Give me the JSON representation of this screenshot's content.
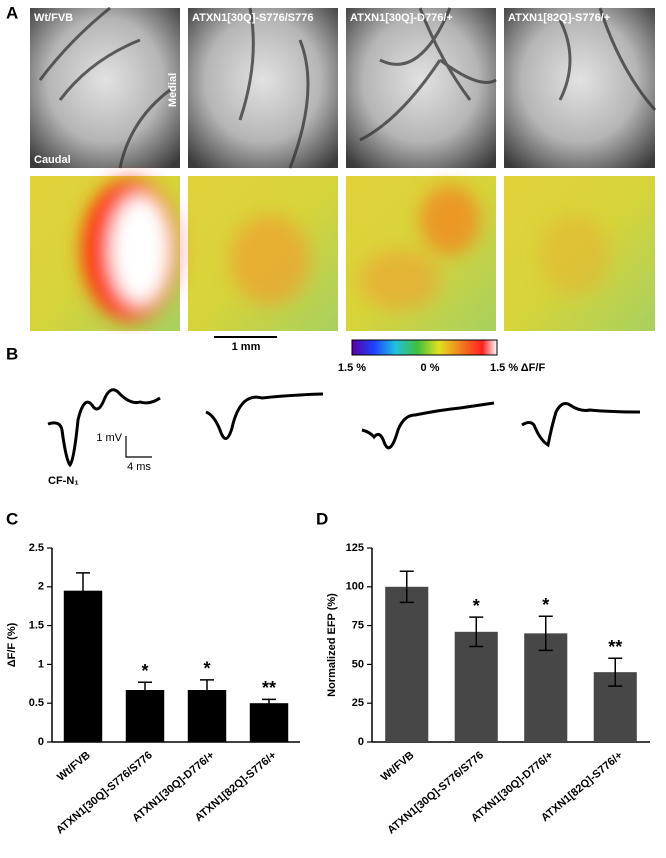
{
  "panel_labels": [
    "A",
    "B",
    "C",
    "D"
  ],
  "images": {
    "labels": [
      "Wt/FVB",
      "ATXN1[30Q]-S776/S776",
      "ATXN1[30Q]-D776/+",
      "ATXN1[82Q]-S776/+"
    ],
    "orientation": [
      "Medial",
      "Caudal"
    ],
    "scale_bar": "1 mm"
  },
  "colorbar": {
    "labels": [
      "1.5 %",
      "0 %",
      "1.5 % ΔF/F"
    ]
  },
  "traces": {
    "scale_y": "1 mV",
    "scale_x": "4 ms",
    "label": "CF-N₁"
  },
  "chart_data": [
    {
      "type": "bar",
      "ylabel": "ΔF/F (%)",
      "color": "#000000",
      "categories": [
        "Wt/FVB",
        "ATXN1[30Q]-S776/S776",
        "ATXN1[30Q]-D776/+",
        "ATXN1[82Q]-S776/+"
      ],
      "values": [
        1.95,
        0.67,
        0.67,
        0.5
      ],
      "errors": [
        0.23,
        0.1,
        0.13,
        0.05
      ],
      "significance": [
        null,
        "*",
        "*",
        "**"
      ],
      "ylim": [
        0,
        2.5
      ],
      "yticks": [
        0,
        0.5,
        1,
        1.5,
        2,
        2.5
      ]
    },
    {
      "type": "bar",
      "ylabel": "Normalized EFP (%)",
      "color": "#474747",
      "categories": [
        "Wt/FVB",
        "ATXN1[30Q]-S776/S776",
        "ATXN1[30Q]-D776/+",
        "ATXN1[82Q]-S776/+"
      ],
      "values": [
        100,
        71,
        70,
        45
      ],
      "errors": [
        10,
        9.5,
        11,
        9
      ],
      "significance": [
        null,
        "*",
        "*",
        "**"
      ],
      "ylim": [
        0,
        125
      ],
      "yticks": [
        0,
        25,
        50,
        75,
        100,
        125
      ]
    }
  ]
}
